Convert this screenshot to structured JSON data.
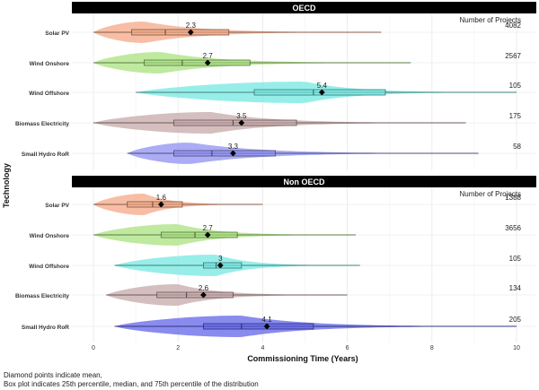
{
  "chart_data": {
    "type": "violin",
    "ylabel": "Technology",
    "xlabel": "Commissioning Time (Years)",
    "xlim": [
      -0.5,
      10
    ],
    "xticks": [
      0,
      2,
      4,
      6,
      8,
      10
    ],
    "grid": true,
    "count_header": "Number of Projects",
    "footnote": [
      "Diamond points indicate mean,",
      "Box plot indicates 25th percentile, median, and 75th percentile of the distribution"
    ],
    "panels": [
      {
        "title": "OECD",
        "rows": [
          {
            "technology": "Solar PV",
            "color": "#f4a582",
            "mean": 2.3,
            "q1": 0.9,
            "median": 1.7,
            "q3": 3.2,
            "min": 0.0,
            "max": 6.8,
            "peak": 1.2,
            "count": "4082"
          },
          {
            "technology": "Wind Onshore",
            "color": "#a6e07a",
            "mean": 2.7,
            "q1": 1.2,
            "median": 2.1,
            "q3": 3.7,
            "min": 0.0,
            "max": 7.5,
            "peak": 1.6,
            "count": "2567"
          },
          {
            "technology": "Wind Offshore",
            "color": "#6fe8e0",
            "mean": 5.4,
            "q1": 3.8,
            "median": 5.2,
            "q3": 6.9,
            "min": 1.0,
            "max": 10.0,
            "peak": 5.0,
            "count": "105"
          },
          {
            "technology": "Biomass Electricity",
            "color": "#c4a5a5",
            "mean": 3.5,
            "q1": 1.9,
            "median": 3.3,
            "q3": 4.8,
            "min": 0.0,
            "max": 8.8,
            "peak": 2.8,
            "count": "175"
          },
          {
            "technology": "Small Hydro RoR",
            "color": "#8a8cf0",
            "mean": 3.3,
            "q1": 1.9,
            "median": 2.8,
            "q3": 4.3,
            "min": 0.8,
            "max": 9.1,
            "peak": 2.3,
            "count": "58"
          }
        ]
      },
      {
        "title": "Non OECD",
        "rows": [
          {
            "technology": "Solar PV",
            "color": "#f4a582",
            "mean": 1.6,
            "q1": 0.8,
            "median": 1.4,
            "q3": 2.1,
            "min": 0.0,
            "max": 4.0,
            "peak": 1.2,
            "count": "1388"
          },
          {
            "technology": "Wind Onshore",
            "color": "#a6e07a",
            "mean": 2.7,
            "q1": 1.6,
            "median": 2.4,
            "q3": 3.4,
            "min": 0.0,
            "max": 6.2,
            "peak": 2.0,
            "count": "3656"
          },
          {
            "technology": "Wind Offshore",
            "color": "#6fe8e0",
            "mean": 3.0,
            "q1": 2.6,
            "median": 2.9,
            "q3": 3.5,
            "min": 0.5,
            "max": 6.3,
            "peak": 2.9,
            "count": "105"
          },
          {
            "technology": "Biomass Electricity",
            "color": "#c4a5a5",
            "mean": 2.6,
            "q1": 1.5,
            "median": 2.2,
            "q3": 3.3,
            "min": 0.3,
            "max": 6.0,
            "peak": 2.0,
            "count": "134"
          },
          {
            "technology": "Small Hydro RoR",
            "color": "#5b5ee8",
            "mean": 4.1,
            "q1": 2.6,
            "median": 3.5,
            "q3": 5.2,
            "min": 0.5,
            "max": 10.0,
            "peak": 3.5,
            "count": "205"
          }
        ]
      }
    ]
  }
}
